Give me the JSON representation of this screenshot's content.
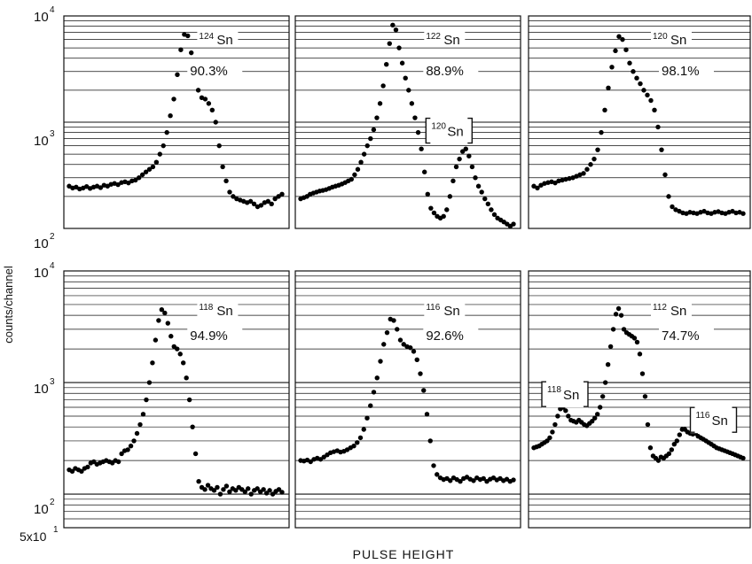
{
  "figure": {
    "ylabel": "counts/channel",
    "xlabel": "PULSE HEIGHT",
    "ytick_labels": {
      "top_1e4": "10",
      "top_1e4_exp": "4",
      "top_1e3": "10",
      "top_1e3_exp": "3",
      "top_1e2": "10",
      "top_1e2_exp": "2",
      "bot_1e4": "10",
      "bot_1e4_exp": "4",
      "bot_1e3": "10",
      "bot_1e3_exp": "3",
      "bot_1e2": "10",
      "bot_1e2_exp": "2",
      "bot_5e1": "5x10",
      "bot_5e1_exp": "1"
    },
    "line_color": "#111111",
    "point_color": "#000000"
  },
  "chart_data": [
    {
      "type": "scatter",
      "isotope_mass": "124",
      "element": "Sn",
      "enrichment": "90.3%",
      "impurity_labels": [],
      "yscale": "log",
      "ylim": [
        100,
        10000
      ],
      "grid": "horizontal log lines",
      "x": [
        1,
        2,
        3,
        4,
        5,
        6,
        7,
        8,
        9,
        10,
        11,
        12,
        13,
        14,
        15,
        16,
        17,
        18,
        19,
        20,
        21,
        22,
        23,
        24,
        25,
        26,
        27,
        28,
        29,
        30,
        31,
        32,
        33,
        34,
        35,
        36,
        37,
        38,
        39,
        40,
        41,
        42,
        43,
        44,
        45,
        46,
        47,
        48,
        49,
        50,
        51,
        52,
        53,
        54,
        55,
        56,
        57,
        58,
        59,
        60,
        61,
        62
      ],
      "y": [
        250,
        240,
        245,
        235,
        240,
        248,
        238,
        245,
        250,
        242,
        255,
        250,
        260,
        265,
        258,
        270,
        275,
        268,
        280,
        285,
        300,
        320,
        340,
        360,
        380,
        420,
        500,
        600,
        800,
        1150,
        1650,
        2800,
        4800,
        6700,
        6500,
        4500,
        3000,
        2000,
        1700,
        1650,
        1500,
        1300,
        1000,
        600,
        380,
        280,
        220,
        200,
        190,
        185,
        180,
        175,
        180,
        170,
        160,
        165,
        175,
        180,
        170,
        190,
        200,
        210
      ]
    },
    {
      "type": "scatter",
      "isotope_mass": "122",
      "element": "Sn",
      "enrichment": "88.9%",
      "impurity_labels": [
        {
          "mass": "120",
          "element": "Sn"
        }
      ],
      "yscale": "log",
      "ylim": [
        100,
        10000
      ],
      "grid": "horizontal log lines",
      "x": [
        1,
        2,
        3,
        4,
        5,
        6,
        7,
        8,
        9,
        10,
        11,
        12,
        13,
        14,
        15,
        16,
        17,
        18,
        19,
        20,
        21,
        22,
        23,
        24,
        25,
        26,
        27,
        28,
        29,
        30,
        31,
        32,
        33,
        34,
        35,
        36,
        37,
        38,
        39,
        40,
        41,
        42,
        43,
        44,
        45,
        46,
        47,
        48,
        49,
        50,
        51,
        52,
        53,
        54,
        55,
        56,
        57,
        58,
        59,
        60,
        61,
        62,
        63,
        64,
        65,
        66,
        67,
        68
      ],
      "y": [
        190,
        195,
        200,
        210,
        215,
        220,
        225,
        228,
        232,
        238,
        245,
        250,
        255,
        262,
        270,
        280,
        290,
        320,
        360,
        420,
        500,
        600,
        700,
        850,
        1100,
        1500,
        2200,
        3500,
        5500,
        8200,
        7400,
        5000,
        3600,
        2600,
        2000,
        1500,
        1100,
        800,
        560,
        340,
        210,
        155,
        140,
        130,
        125,
        130,
        150,
        200,
        280,
        380,
        450,
        530,
        560,
        480,
        380,
        300,
        250,
        220,
        190,
        170,
        150,
        135,
        125,
        120,
        115,
        110,
        105,
        110
      ]
    },
    {
      "type": "scatter",
      "isotope_mass": "120",
      "element": "Sn",
      "enrichment": "98.1%",
      "impurity_labels": [],
      "yscale": "log",
      "ylim": [
        100,
        10000
      ],
      "grid": "horizontal log lines",
      "x": [
        1,
        2,
        3,
        4,
        5,
        6,
        7,
        8,
        9,
        10,
        11,
        12,
        13,
        14,
        15,
        16,
        17,
        18,
        19,
        20,
        21,
        22,
        23,
        24,
        25,
        26,
        27,
        28,
        29,
        30,
        31,
        32,
        33,
        34,
        35,
        36,
        37,
        38,
        39,
        40,
        41,
        42,
        43,
        44,
        45,
        46,
        47,
        48,
        49,
        50,
        51,
        52,
        53,
        54,
        55,
        56,
        57,
        58,
        59,
        60
      ],
      "y": [
        250,
        240,
        255,
        265,
        270,
        275,
        268,
        280,
        285,
        290,
        295,
        300,
        310,
        320,
        330,
        360,
        400,
        450,
        550,
        800,
        1300,
        2100,
        3300,
        4700,
        6400,
        6000,
        4800,
        3600,
        3000,
        2600,
        2300,
        2000,
        1800,
        1600,
        1300,
        900,
        550,
        320,
        200,
        160,
        150,
        145,
        140,
        138,
        142,
        140,
        138,
        142,
        145,
        140,
        138,
        142,
        144,
        140,
        138,
        142,
        145,
        140,
        142,
        138
      ]
    },
    {
      "type": "scatter",
      "isotope_mass": "118",
      "element": "Sn",
      "enrichment": "94.9%",
      "impurity_labels": [],
      "yscale": "log",
      "ylim": [
        50,
        10000
      ],
      "grid": "horizontal log lines",
      "x": [
        1,
        2,
        3,
        4,
        5,
        6,
        7,
        8,
        9,
        10,
        11,
        12,
        13,
        14,
        15,
        16,
        17,
        18,
        19,
        20,
        21,
        22,
        23,
        24,
        25,
        26,
        27,
        28,
        29,
        30,
        31,
        32,
        33,
        34,
        35,
        36,
        37,
        38,
        39,
        40,
        41,
        42,
        43,
        44,
        45,
        46,
        47,
        48,
        49,
        50,
        51,
        52,
        53,
        54,
        55,
        56,
        57,
        58,
        59,
        60,
        61,
        62,
        63,
        64,
        65,
        66,
        67,
        68,
        69,
        70
      ],
      "y": [
        165,
        160,
        170,
        165,
        160,
        170,
        175,
        190,
        195,
        185,
        190,
        195,
        200,
        195,
        190,
        200,
        195,
        230,
        245,
        250,
        270,
        300,
        350,
        420,
        520,
        700,
        1000,
        1500,
        2400,
        3600,
        4500,
        4200,
        3400,
        2600,
        2100,
        2000,
        1800,
        1500,
        1100,
        700,
        400,
        230,
        130,
        115,
        110,
        120,
        112,
        108,
        115,
        100,
        110,
        118,
        105,
        112,
        108,
        115,
        110,
        105,
        112,
        100,
        108,
        112,
        105,
        110,
        102,
        108,
        100,
        106,
        110,
        104
      ]
    },
    {
      "type": "scatter",
      "isotope_mass": "116",
      "element": "Sn",
      "enrichment": "92.6%",
      "impurity_labels": [],
      "yscale": "log",
      "ylim": [
        50,
        10000
      ],
      "grid": "horizontal log lines",
      "x": [
        1,
        2,
        3,
        4,
        5,
        6,
        7,
        8,
        9,
        10,
        11,
        12,
        13,
        14,
        15,
        16,
        17,
        18,
        19,
        20,
        21,
        22,
        23,
        24,
        25,
        26,
        27,
        28,
        29,
        30,
        31,
        32,
        33,
        34,
        35,
        36,
        37,
        38,
        39,
        40,
        41,
        42,
        43,
        44,
        45,
        46,
        47,
        48,
        49,
        50,
        51,
        52,
        53,
        54,
        55,
        56,
        57,
        58,
        59,
        60,
        61,
        62,
        63,
        64,
        65
      ],
      "y": [
        200,
        198,
        202,
        195,
        205,
        210,
        205,
        215,
        225,
        235,
        240,
        245,
        238,
        242,
        250,
        260,
        270,
        290,
        320,
        380,
        480,
        620,
        820,
        1100,
        1550,
        2200,
        2800,
        3700,
        3600,
        3000,
        2400,
        2200,
        2100,
        2050,
        1900,
        1600,
        1200,
        850,
        520,
        300,
        180,
        150,
        140,
        135,
        138,
        132,
        140,
        135,
        130,
        138,
        142,
        136,
        132,
        140,
        135,
        138,
        130,
        136,
        140,
        134,
        138,
        132,
        136,
        130,
        134
      ]
    },
    {
      "type": "scatter",
      "isotope_mass": "112",
      "element": "Sn",
      "enrichment": "74.7%",
      "impurity_labels": [
        {
          "mass": "118",
          "element": "Sn"
        },
        {
          "mass": "116",
          "element": "Sn"
        }
      ],
      "yscale": "log",
      "ylim": [
        50,
        10000
      ],
      "grid": "horizontal log lines",
      "x": [
        1,
        2,
        3,
        4,
        5,
        6,
        7,
        8,
        9,
        10,
        11,
        12,
        13,
        14,
        15,
        16,
        17,
        18,
        19,
        20,
        21,
        22,
        23,
        24,
        25,
        26,
        27,
        28,
        29,
        30,
        31,
        32,
        33,
        34,
        35,
        36,
        37,
        38,
        39,
        40,
        41,
        42,
        43,
        44,
        45,
        46,
        47,
        48,
        49,
        50,
        51,
        52,
        53,
        54,
        55,
        56,
        57,
        58,
        59,
        60,
        61,
        62,
        63,
        64,
        65,
        66,
        67,
        68,
        69,
        70,
        71,
        72,
        73,
        74,
        75,
        76,
        77,
        78,
        79,
        80
      ],
      "y": [
        260,
        265,
        270,
        280,
        290,
        300,
        320,
        360,
        420,
        500,
        580,
        600,
        560,
        500,
        460,
        450,
        440,
        460,
        440,
        420,
        410,
        430,
        450,
        480,
        520,
        600,
        750,
        1000,
        1450,
        2100,
        3000,
        4100,
        4600,
        4000,
        3000,
        2800,
        2700,
        2600,
        2500,
        2300,
        1800,
        1200,
        750,
        420,
        260,
        220,
        210,
        200,
        215,
        210,
        220,
        230,
        250,
        280,
        300,
        340,
        380,
        380,
        360,
        350,
        345,
        350,
        330,
        320,
        310,
        300,
        290,
        280,
        270,
        260,
        255,
        250,
        245,
        240,
        235,
        230,
        225,
        220,
        215,
        210
      ]
    }
  ]
}
